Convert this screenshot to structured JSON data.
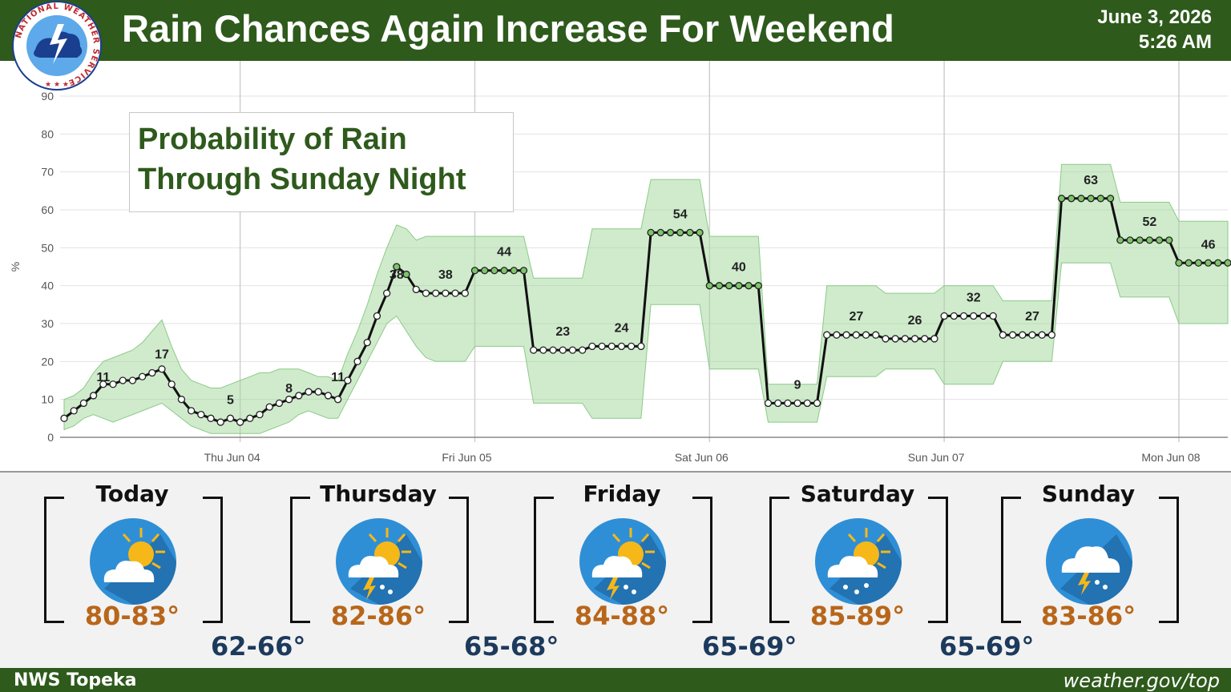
{
  "header": {
    "title": "Rain Chances Again Increase For Weekend",
    "date": "June 3, 2026",
    "time": "5:26 AM",
    "logo_text": "NATIONAL WEATHER SERVICE"
  },
  "legend_box": {
    "line1": "Probability of Rain",
    "line2": "Through Sunday Night"
  },
  "chart_data": {
    "type": "line",
    "ylabel": "%",
    "ylim": [
      0,
      90
    ],
    "yticks": [
      "0",
      "10",
      "20",
      "30",
      "40",
      "50",
      "60",
      "70",
      "80",
      "90"
    ],
    "xticks": [
      "Thu Jun 04",
      "Fri Jun 05",
      "Sat Jun 06",
      "Sun Jun 07",
      "Mon Jun 08"
    ],
    "grid": true,
    "colors": {
      "band": "#9fd89a",
      "line": "#111111",
      "point_fill": "#ffffff",
      "point_green": "#7dc46a"
    },
    "periods": [
      {
        "label": "11",
        "value": 11
      },
      {
        "label": "17",
        "value": 17
      },
      {
        "label": "5",
        "value": 5
      },
      {
        "label": "8",
        "value": 8
      },
      {
        "label": "11",
        "value": 11
      },
      {
        "label": "38",
        "value": 38
      },
      {
        "label": "38",
        "value": 38
      },
      {
        "label": "44",
        "value": 44
      },
      {
        "label": "23",
        "value": 23
      },
      {
        "label": "24",
        "value": 24
      },
      {
        "label": "54",
        "value": 54
      },
      {
        "label": "40",
        "value": 40
      },
      {
        "label": "9",
        "value": 9
      },
      {
        "label": "27",
        "value": 27
      },
      {
        "label": "26",
        "value": 26
      },
      {
        "label": "32",
        "value": 32
      },
      {
        "label": "27",
        "value": 27
      },
      {
        "label": "63",
        "value": 63
      },
      {
        "label": "52",
        "value": 52
      },
      {
        "label": "46",
        "value": 46
      }
    ],
    "hourly_series": [
      5,
      7,
      9,
      11,
      14,
      14,
      15,
      15,
      16,
      17,
      18,
      14,
      10,
      7,
      6,
      5,
      4,
      5,
      4,
      5,
      6,
      8,
      9,
      10,
      11,
      12,
      12,
      11,
      10,
      15,
      20,
      25,
      32,
      38,
      45,
      43,
      39,
      38,
      38,
      38,
      38,
      38,
      44,
      44,
      44,
      44,
      44,
      44,
      23,
      23,
      23,
      23,
      23,
      23,
      24,
      24,
      24,
      24,
      24,
      24,
      54,
      54,
      54,
      54,
      54,
      54,
      40,
      40,
      40,
      40,
      40,
      40,
      9,
      9,
      9,
      9,
      9,
      9,
      27,
      27,
      27,
      27,
      27,
      27,
      26,
      26,
      26,
      26,
      26,
      26,
      32,
      32,
      32,
      32,
      32,
      32,
      27,
      27,
      27,
      27,
      27,
      27,
      63,
      63,
      63,
      63,
      63,
      63,
      52,
      52,
      52,
      52,
      52,
      52,
      46,
      46,
      46,
      46,
      46,
      46
    ],
    "band_lower": [
      2,
      3,
      5,
      6,
      5,
      4,
      5,
      6,
      7,
      8,
      9,
      7,
      5,
      3,
      2,
      1,
      1,
      1,
      1,
      1,
      1,
      2,
      3,
      4,
      6,
      7,
      6,
      5,
      5,
      10,
      15,
      20,
      25,
      30,
      32,
      28,
      24,
      21,
      20,
      20,
      20,
      20,
      24,
      24,
      24,
      24,
      24,
      24,
      9,
      9,
      9,
      9,
      9,
      9,
      5,
      5,
      5,
      5,
      5,
      5,
      35,
      35,
      35,
      35,
      35,
      35,
      18,
      18,
      18,
      18,
      18,
      18,
      4,
      4,
      4,
      4,
      4,
      4,
      16,
      16,
      16,
      16,
      16,
      16,
      18,
      18,
      18,
      18,
      18,
      18,
      14,
      14,
      14,
      14,
      14,
      14,
      20,
      20,
      20,
      20,
      20,
      20,
      46,
      46,
      46,
      46,
      46,
      46,
      37,
      37,
      37,
      37,
      37,
      37,
      30,
      30,
      30,
      30,
      30,
      30
    ],
    "band_upper": [
      10,
      11,
      13,
      17,
      20,
      21,
      22,
      23,
      25,
      28,
      31,
      24,
      18,
      15,
      14,
      13,
      13,
      14,
      15,
      16,
      17,
      17,
      18,
      18,
      18,
      17,
      16,
      16,
      15,
      22,
      28,
      35,
      43,
      50,
      56,
      55,
      52,
      53,
      53,
      53,
      53,
      53,
      53,
      53,
      53,
      53,
      53,
      53,
      42,
      42,
      42,
      42,
      42,
      42,
      55,
      55,
      55,
      55,
      55,
      55,
      68,
      68,
      68,
      68,
      68,
      68,
      53,
      53,
      53,
      53,
      53,
      53,
      14,
      14,
      14,
      14,
      14,
      14,
      40,
      40,
      40,
      40,
      40,
      40,
      38,
      38,
      38,
      38,
      38,
      38,
      40,
      40,
      40,
      40,
      40,
      40,
      36,
      36,
      36,
      36,
      36,
      36,
      72,
      72,
      72,
      72,
      72,
      72,
      62,
      62,
      62,
      62,
      62,
      62,
      57,
      57,
      57,
      57,
      57,
      57
    ]
  },
  "forecast": {
    "days": [
      {
        "name": "Today",
        "high": "80-83°",
        "icon": "partly-sunny-icon"
      },
      {
        "name": "Thursday",
        "high": "82-86°",
        "icon": "sun-thunderstorm-icon"
      },
      {
        "name": "Friday",
        "high": "84-88°",
        "icon": "sun-thunderstorm-icon"
      },
      {
        "name": "Saturday",
        "high": "85-89°",
        "icon": "sun-rain-icon"
      },
      {
        "name": "Sunday",
        "high": "83-86°",
        "icon": "thunderstorm-icon"
      }
    ],
    "lows": [
      "62-66°",
      "65-68°",
      "65-69°",
      "65-69°"
    ],
    "colors": {
      "high": "#b8661a",
      "low": "#1c3a5c",
      "icon_circle": "#2f8fd6"
    }
  },
  "footer": {
    "left": "NWS Topeka",
    "right": "weather.gov/top"
  }
}
